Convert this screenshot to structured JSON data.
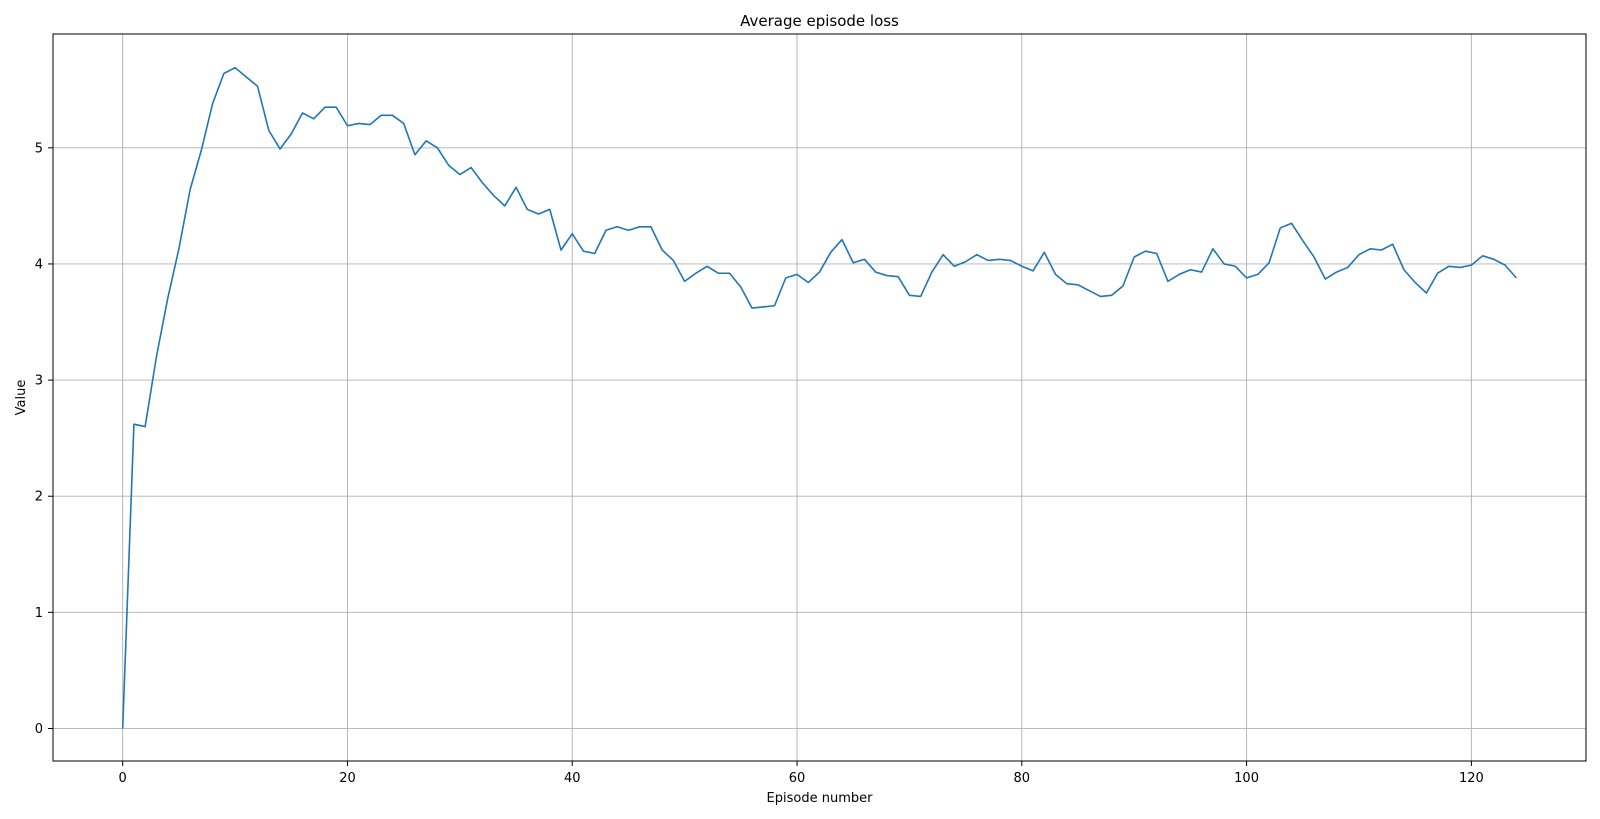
{
  "chart_data": {
    "type": "line",
    "title": "Average episode loss",
    "xlabel": "Episode number",
    "ylabel": "Value",
    "xlim": [
      -6.2,
      130.2
    ],
    "ylim": [
      -0.28,
      5.98
    ],
    "grid": true,
    "line_color": "#1f77b4",
    "xticks": [
      0,
      20,
      40,
      60,
      80,
      100,
      120
    ],
    "yticks": [
      0,
      1,
      2,
      3,
      4,
      5
    ],
    "series": [
      {
        "x": [
          0,
          1,
          2,
          3,
          4,
          5,
          6,
          7,
          8,
          9,
          10,
          11,
          12,
          13,
          14,
          15,
          16,
          17,
          18,
          19,
          20,
          21,
          22,
          23,
          24,
          25,
          26,
          27,
          28,
          29,
          30,
          31,
          32,
          33,
          34,
          35,
          36,
          37,
          38,
          39,
          40,
          41,
          42,
          43,
          44,
          45,
          46,
          47,
          48,
          49,
          50,
          51,
          52,
          53,
          54,
          55,
          56,
          57,
          58,
          59,
          60,
          61,
          62,
          63,
          64,
          65,
          66,
          67,
          68,
          69,
          70,
          71,
          72,
          73,
          74,
          75,
          76,
          77,
          78,
          79,
          80,
          81,
          82,
          83,
          84,
          85,
          86,
          87,
          88,
          89,
          90,
          91,
          92,
          93,
          94,
          95,
          96,
          97,
          98,
          99,
          100,
          101,
          102,
          103,
          104,
          105,
          106,
          107,
          108,
          109,
          110,
          111,
          112,
          113,
          114,
          115,
          116,
          117,
          118,
          119,
          120,
          121,
          122,
          123,
          124
        ],
        "y": [
          0.0,
          2.62,
          2.6,
          3.2,
          3.7,
          4.13,
          4.64,
          4.98,
          5.38,
          5.64,
          5.69,
          5.61,
          5.53,
          5.15,
          4.99,
          5.12,
          5.3,
          5.25,
          5.35,
          5.35,
          5.19,
          5.21,
          5.2,
          5.28,
          5.28,
          5.21,
          4.94,
          5.06,
          5.0,
          4.85,
          4.77,
          4.83,
          4.7,
          4.59,
          4.5,
          4.66,
          4.47,
          4.43,
          4.47,
          4.12,
          4.26,
          4.11,
          4.09,
          4.29,
          4.32,
          4.29,
          4.32,
          4.32,
          4.12,
          4.03,
          3.85,
          3.92,
          3.98,
          3.92,
          3.92,
          3.8,
          3.62,
          3.63,
          3.64,
          3.88,
          3.91,
          3.84,
          3.93,
          4.1,
          4.21,
          4.01,
          4.04,
          3.93,
          3.9,
          3.89,
          3.73,
          3.72,
          3.93,
          4.08,
          3.98,
          4.02,
          4.08,
          4.03,
          4.04,
          4.03,
          3.98,
          3.94,
          4.1,
          3.91,
          3.83,
          3.82,
          3.77,
          3.72,
          3.73,
          3.81,
          4.06,
          4.11,
          4.09,
          3.85,
          3.91,
          3.95,
          3.93,
          4.13,
          4.0,
          3.98,
          3.88,
          3.91,
          4.01,
          4.31,
          4.35,
          4.2,
          4.06,
          3.87,
          3.93,
          3.97,
          4.08,
          4.13,
          4.12,
          4.17,
          3.95,
          3.84,
          3.75,
          3.92,
          3.98,
          3.97,
          3.99,
          4.07,
          4.04,
          3.99,
          3.88
        ]
      }
    ]
  }
}
